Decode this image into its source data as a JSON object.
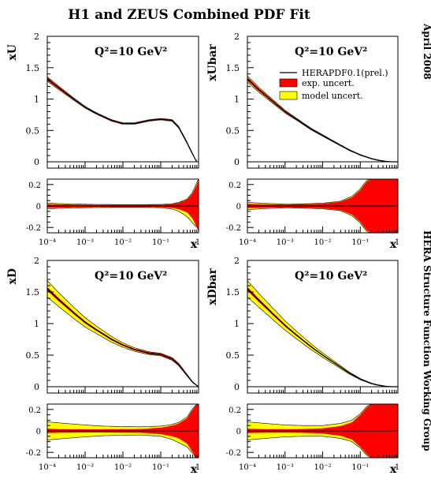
{
  "title": "H1 and ZEUS Combined PDF Fit",
  "side_labels": {
    "top": "April 2008",
    "bottom": "HERA Structure Function Working Group"
  },
  "colors": {
    "exp": "#ff0000",
    "model": "#ffff00",
    "line": "#000000"
  },
  "legend": {
    "central": "HERAPDF0.1(prel.)",
    "exp": "exp. uncert.",
    "model": "model uncert."
  },
  "chart_data": [
    {
      "type": "line",
      "panel": "top-left",
      "ylabel": "xU",
      "xlabel": "x",
      "annotation": "Q²=10 GeV²",
      "x_scale": "log",
      "xlim": [
        0.0001,
        1
      ],
      "ylim": [
        -0.1,
        2
      ],
      "yticks": [
        0,
        0.5,
        1,
        1.5,
        2
      ],
      "ytick_labels": [
        "0",
        "0.5",
        "1",
        "1.5",
        "2"
      ],
      "xtick_labels": [
        "10⁻⁴",
        "10⁻³",
        "10⁻²",
        "10⁻¹",
        "1"
      ],
      "x": [
        0.0001,
        0.0002,
        0.0005,
        0.001,
        0.002,
        0.005,
        0.01,
        0.02,
        0.05,
        0.1,
        0.2,
        0.3,
        0.5,
        0.7,
        0.9
      ],
      "central": [
        1.32,
        1.18,
        1.0,
        0.87,
        0.77,
        0.66,
        0.61,
        0.61,
        0.66,
        0.68,
        0.66,
        0.55,
        0.3,
        0.12,
        0.0
      ],
      "exp_band": [
        0.025,
        0.02,
        0.012,
        0.01,
        0.01,
        0.01,
        0.01,
        0.01,
        0.01,
        0.01,
        0.012,
        0.012,
        0.01,
        0.005,
        0.0
      ],
      "model_band": [
        0.035,
        0.028,
        0.018,
        0.014,
        0.012,
        0.012,
        0.012,
        0.012,
        0.012,
        0.012,
        0.014,
        0.014,
        0.012,
        0.006,
        0.0
      ],
      "ratio": {
        "ylim": [
          -0.25,
          0.25
        ],
        "yticks": [
          -0.2,
          0,
          0.2
        ],
        "ytick_labels": [
          "-0.2",
          "0",
          "0.2"
        ],
        "x": [
          0.0001,
          0.0003,
          0.001,
          0.003,
          0.01,
          0.03,
          0.1,
          0.2,
          0.3,
          0.5,
          0.7,
          0.9,
          1.0
        ],
        "exp_up": [
          0.018,
          0.014,
          0.012,
          0.01,
          0.01,
          0.01,
          0.012,
          0.018,
          0.03,
          0.06,
          0.12,
          0.2,
          0.24
        ],
        "exp_dn": [
          -0.018,
          -0.014,
          -0.012,
          -0.01,
          -0.01,
          -0.01,
          -0.012,
          -0.018,
          -0.03,
          -0.06,
          -0.12,
          -0.2,
          -0.24
        ],
        "model_up": [
          0.026,
          0.02,
          0.016,
          0.014,
          0.013,
          0.013,
          0.014,
          0.02,
          0.034,
          0.065,
          0.13,
          0.22,
          0.25
        ],
        "model_dn": [
          -0.026,
          -0.02,
          -0.016,
          -0.014,
          -0.013,
          -0.013,
          -0.016,
          -0.028,
          -0.05,
          -0.1,
          -0.16,
          -0.2,
          -0.2
        ]
      }
    },
    {
      "type": "line",
      "panel": "top-right",
      "ylabel": "xUbar",
      "xlabel": "x",
      "annotation": "Q²=10 GeV²",
      "x_scale": "log",
      "xlim": [
        0.0001,
        1
      ],
      "ylim": [
        -0.1,
        2
      ],
      "yticks": [
        0,
        0.5,
        1,
        1.5,
        2
      ],
      "ytick_labels": [
        "0",
        "0.5",
        "1",
        "1.5",
        "2"
      ],
      "xtick_labels": [
        "10⁻⁴",
        "10⁻³",
        "10⁻²",
        "10⁻¹",
        "1"
      ],
      "x": [
        0.0001,
        0.0002,
        0.0005,
        0.001,
        0.002,
        0.005,
        0.01,
        0.02,
        0.05,
        0.1,
        0.2,
        0.3,
        0.5,
        0.7,
        1.0
      ],
      "central": [
        1.32,
        1.15,
        0.95,
        0.8,
        0.68,
        0.52,
        0.42,
        0.32,
        0.19,
        0.11,
        0.05,
        0.025,
        0.005,
        0.0,
        0.0
      ],
      "exp_band": [
        0.03,
        0.025,
        0.02,
        0.015,
        0.012,
        0.01,
        0.01,
        0.008,
        0.006,
        0.005,
        0.004,
        0.003,
        0.002,
        0.001,
        0.0
      ],
      "model_band": [
        0.05,
        0.04,
        0.03,
        0.022,
        0.016,
        0.013,
        0.012,
        0.01,
        0.008,
        0.006,
        0.005,
        0.004,
        0.002,
        0.001,
        0.0
      ],
      "ratio": {
        "ylim": [
          -0.25,
          0.25
        ],
        "yticks": [
          -0.2,
          0,
          0.2
        ],
        "ytick_labels": [
          "-0.2",
          "0",
          "0.2"
        ],
        "x": [
          0.0001,
          0.0003,
          0.001,
          0.003,
          0.01,
          0.03,
          0.06,
          0.1,
          0.15,
          0.2,
          0.3,
          0.5,
          1.0
        ],
        "exp_up": [
          0.02,
          0.016,
          0.014,
          0.016,
          0.022,
          0.04,
          0.08,
          0.15,
          0.23,
          0.25,
          0.25,
          0.25,
          0.25
        ],
        "exp_dn": [
          -0.02,
          -0.016,
          -0.014,
          -0.016,
          -0.022,
          -0.04,
          -0.08,
          -0.15,
          -0.23,
          -0.25,
          -0.25,
          -0.25,
          -0.25
        ],
        "model_up": [
          0.034,
          0.024,
          0.018,
          0.02,
          0.026,
          0.045,
          0.09,
          0.16,
          0.24,
          0.25,
          0.25,
          0.25,
          0.25
        ],
        "model_dn": [
          -0.034,
          -0.024,
          -0.018,
          -0.02,
          -0.026,
          -0.045,
          -0.09,
          -0.16,
          -0.24,
          -0.25,
          -0.25,
          -0.25,
          -0.25
        ]
      }
    },
    {
      "type": "line",
      "panel": "bottom-left",
      "ylabel": "xD",
      "xlabel": "x",
      "annotation": "Q²=10 GeV²",
      "x_scale": "log",
      "xlim": [
        0.0001,
        1
      ],
      "ylim": [
        -0.1,
        2
      ],
      "yticks": [
        0,
        0.5,
        1,
        1.5,
        2
      ],
      "ytick_labels": [
        "0",
        "0.5",
        "1",
        "1.5",
        "2"
      ],
      "xtick_labels": [
        "10⁻⁴",
        "10⁻³",
        "10⁻²",
        "10⁻¹",
        "1"
      ],
      "x": [
        0.0001,
        0.0002,
        0.0005,
        0.001,
        0.002,
        0.005,
        0.01,
        0.02,
        0.05,
        0.1,
        0.2,
        0.3,
        0.5,
        0.7,
        1.0
      ],
      "central": [
        1.55,
        1.38,
        1.17,
        1.02,
        0.9,
        0.75,
        0.66,
        0.59,
        0.53,
        0.51,
        0.44,
        0.35,
        0.18,
        0.07,
        0.0
      ],
      "exp_band": [
        0.03,
        0.025,
        0.02,
        0.018,
        0.016,
        0.015,
        0.015,
        0.015,
        0.016,
        0.018,
        0.02,
        0.018,
        0.012,
        0.006,
        0.0
      ],
      "model_band": [
        0.13,
        0.11,
        0.09,
        0.075,
        0.06,
        0.045,
        0.035,
        0.028,
        0.022,
        0.02,
        0.022,
        0.02,
        0.013,
        0.007,
        0.0
      ],
      "ratio": {
        "ylim": [
          -0.25,
          0.25
        ],
        "yticks": [
          -0.2,
          0,
          0.2
        ],
        "ytick_labels": [
          "-0.2",
          "0",
          "0.2"
        ],
        "x": [
          0.0001,
          0.0003,
          0.001,
          0.003,
          0.01,
          0.03,
          0.1,
          0.2,
          0.3,
          0.5,
          0.7,
          0.9,
          1.0
        ],
        "exp_up": [
          0.02,
          0.016,
          0.015,
          0.015,
          0.016,
          0.018,
          0.03,
          0.05,
          0.07,
          0.12,
          0.2,
          0.25,
          0.25
        ],
        "exp_dn": [
          -0.02,
          -0.016,
          -0.015,
          -0.015,
          -0.016,
          -0.018,
          -0.03,
          -0.05,
          -0.07,
          -0.12,
          -0.2,
          -0.25,
          -0.25
        ],
        "model_up": [
          0.085,
          0.07,
          0.055,
          0.045,
          0.04,
          0.038,
          0.045,
          0.06,
          0.08,
          0.13,
          0.21,
          0.25,
          0.25
        ],
        "model_dn": [
          -0.085,
          -0.07,
          -0.055,
          -0.045,
          -0.04,
          -0.038,
          -0.05,
          -0.08,
          -0.11,
          -0.15,
          -0.21,
          -0.25,
          -0.25
        ]
      }
    },
    {
      "type": "line",
      "panel": "bottom-right",
      "ylabel": "xDbar",
      "xlabel": "x",
      "annotation": "Q²=10 GeV²",
      "x_scale": "log",
      "xlim": [
        0.0001,
        1
      ],
      "ylim": [
        -0.1,
        2
      ],
      "yticks": [
        0,
        0.5,
        1,
        1.5,
        2
      ],
      "ytick_labels": [
        "0",
        "0.5",
        "1",
        "1.5",
        "2"
      ],
      "xtick_labels": [
        "10⁻⁴",
        "10⁻³",
        "10⁻²",
        "10⁻¹",
        "1"
      ],
      "x": [
        0.0001,
        0.0002,
        0.0005,
        0.001,
        0.002,
        0.005,
        0.01,
        0.02,
        0.05,
        0.1,
        0.2,
        0.3,
        0.5,
        0.7,
        1.0
      ],
      "central": [
        1.55,
        1.37,
        1.14,
        0.97,
        0.82,
        0.63,
        0.5,
        0.38,
        0.22,
        0.12,
        0.05,
        0.025,
        0.005,
        0.0,
        0.0
      ],
      "exp_band": [
        0.03,
        0.025,
        0.02,
        0.017,
        0.014,
        0.012,
        0.01,
        0.009,
        0.007,
        0.006,
        0.005,
        0.003,
        0.002,
        0.001,
        0.0
      ],
      "model_band": [
        0.13,
        0.11,
        0.09,
        0.075,
        0.06,
        0.045,
        0.035,
        0.026,
        0.016,
        0.01,
        0.006,
        0.004,
        0.002,
        0.001,
        0.0
      ],
      "ratio": {
        "ylim": [
          -0.25,
          0.25
        ],
        "yticks": [
          -0.2,
          0,
          0.2
        ],
        "ytick_labels": [
          "-0.2",
          "0",
          "0.2"
        ],
        "x": [
          0.0001,
          0.0003,
          0.001,
          0.003,
          0.01,
          0.03,
          0.06,
          0.1,
          0.15,
          0.2,
          0.3,
          0.5,
          1.0
        ],
        "exp_up": [
          0.02,
          0.017,
          0.016,
          0.018,
          0.024,
          0.045,
          0.08,
          0.15,
          0.22,
          0.25,
          0.25,
          0.25,
          0.25
        ],
        "exp_dn": [
          -0.02,
          -0.017,
          -0.016,
          -0.018,
          -0.024,
          -0.045,
          -0.08,
          -0.15,
          -0.22,
          -0.25,
          -0.25,
          -0.25,
          -0.25
        ],
        "model_up": [
          0.085,
          0.07,
          0.055,
          0.05,
          0.05,
          0.07,
          0.1,
          0.16,
          0.23,
          0.25,
          0.25,
          0.25,
          0.25
        ],
        "model_dn": [
          -0.085,
          -0.07,
          -0.055,
          -0.05,
          -0.05,
          -0.07,
          -0.1,
          -0.16,
          -0.23,
          -0.25,
          -0.25,
          -0.25,
          -0.25
        ]
      }
    }
  ]
}
